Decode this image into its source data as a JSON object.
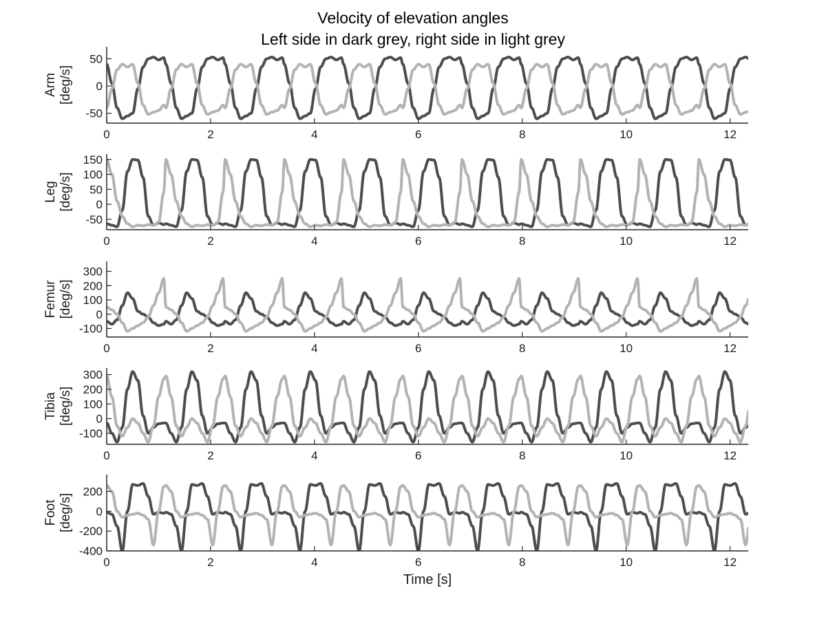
{
  "figure": {
    "title": "Velocity of elevation angles",
    "subtitle": "Left side in dark grey, right side in light grey"
  },
  "colors": {
    "left_series": "#4d4d4d",
    "right_series": "#b3b3b3",
    "axis": "#262626",
    "background": "#ffffff"
  },
  "chart_data": [
    {
      "type": "line",
      "panel": "Arm",
      "ylabel": [
        "Arm",
        "[deg/s]"
      ],
      "xlim": [
        0,
        12.35
      ],
      "ylim": [
        -68,
        72
      ],
      "yticks": [
        -50,
        0,
        50
      ],
      "xticks": [
        0,
        2,
        4,
        6,
        8,
        10,
        12
      ],
      "xlabel": "",
      "grid": false,
      "cycle_period_s": 1.14,
      "series": [
        {
          "side": "left",
          "color": "#4d4d4d",
          "x": [
            0,
            0.1,
            0.2,
            0.3,
            0.4,
            0.5,
            0.6,
            0.7,
            0.8,
            0.9,
            1.0,
            1.1,
            1.14
          ],
          "values": [
            40,
            5,
            -40,
            -60,
            -55,
            -50,
            -5,
            35,
            50,
            53,
            48,
            52,
            40
          ]
        },
        {
          "side": "right",
          "color": "#b3b3b3",
          "x": [
            0,
            0.1,
            0.2,
            0.3,
            0.4,
            0.5,
            0.6,
            0.7,
            0.8,
            0.9,
            1.0,
            1.1,
            1.14
          ],
          "values": [
            -40,
            -5,
            30,
            40,
            35,
            40,
            5,
            -35,
            -52,
            -48,
            -45,
            -35,
            -40
          ]
        }
      ]
    },
    {
      "type": "line",
      "panel": "Leg",
      "ylabel": [
        "Leg",
        "[deg/s]"
      ],
      "xlim": [
        0,
        12.35
      ],
      "ylim": [
        -85,
        168
      ],
      "yticks": [
        -50,
        0,
        50,
        100,
        150
      ],
      "xticks": [
        0,
        2,
        4,
        6,
        8,
        10,
        12
      ],
      "xlabel": "",
      "grid": false,
      "cycle_period_s": 1.14,
      "series": [
        {
          "side": "left",
          "color": "#4d4d4d",
          "x": [
            0,
            0.1,
            0.2,
            0.3,
            0.4,
            0.5,
            0.6,
            0.7,
            0.8,
            0.9,
            1.0,
            1.1,
            1.14
          ],
          "values": [
            -65,
            -70,
            -75,
            -20,
            110,
            150,
            148,
            90,
            -40,
            -70,
            -62,
            -68,
            -65
          ]
        },
        {
          "side": "right",
          "color": "#b3b3b3",
          "x": [
            0,
            0.1,
            0.2,
            0.3,
            0.4,
            0.5,
            0.6,
            0.7,
            0.8,
            0.9,
            1.0,
            1.1,
            1.14
          ],
          "values": [
            150,
            100,
            10,
            -40,
            -65,
            -75,
            -70,
            -72,
            -68,
            -70,
            -60,
            40,
            150
          ]
        }
      ]
    },
    {
      "type": "line",
      "panel": "Femur",
      "ylabel": [
        "Femur",
        "[deg/s]"
      ],
      "xlim": [
        0,
        12.35
      ],
      "ylim": [
        -160,
        370
      ],
      "yticks": [
        -100,
        0,
        100,
        200,
        300
      ],
      "xticks": [
        0,
        2,
        4,
        6,
        8,
        10,
        12
      ],
      "xlabel": "",
      "grid": false,
      "cycle_period_s": 1.14,
      "series": [
        {
          "side": "left",
          "color": "#4d4d4d",
          "x": [
            0,
            0.1,
            0.2,
            0.3,
            0.4,
            0.5,
            0.6,
            0.7,
            0.8,
            0.9,
            1.0,
            1.1,
            1.14
          ],
          "values": [
            -50,
            -70,
            -40,
            60,
            150,
            110,
            20,
            0,
            -20,
            -60,
            -80,
            -70,
            -50
          ]
        },
        {
          "side": "right",
          "color": "#b3b3b3",
          "x": [
            0,
            0.1,
            0.2,
            0.3,
            0.4,
            0.5,
            0.6,
            0.7,
            0.8,
            0.9,
            1.0,
            1.1,
            1.14
          ],
          "values": [
            50,
            30,
            0,
            -60,
            -120,
            -100,
            -80,
            -60,
            -20,
            60,
            150,
            250,
            50
          ]
        }
      ]
    },
    {
      "type": "line",
      "panel": "Tibia",
      "ylabel": [
        "Tibia",
        "[deg/s]"
      ],
      "xlim": [
        0,
        12.35
      ],
      "ylim": [
        -175,
        345
      ],
      "yticks": [
        -100,
        0,
        100,
        200,
        300
      ],
      "xticks": [
        0,
        2,
        4,
        6,
        8,
        10,
        12
      ],
      "xlabel": "",
      "grid": false,
      "cycle_period_s": 1.14,
      "series": [
        {
          "side": "left",
          "color": "#4d4d4d",
          "x": [
            0,
            0.1,
            0.2,
            0.3,
            0.4,
            0.5,
            0.6,
            0.7,
            0.8,
            0.9,
            1.0,
            1.1,
            1.14
          ],
          "values": [
            -30,
            -100,
            -160,
            -60,
            200,
            320,
            260,
            20,
            -100,
            -60,
            -35,
            -30,
            -30
          ]
        },
        {
          "side": "right",
          "color": "#b3b3b3",
          "x": [
            0,
            0.1,
            0.2,
            0.3,
            0.4,
            0.5,
            0.6,
            0.7,
            0.8,
            0.9,
            1.0,
            1.1,
            1.14
          ],
          "values": [
            290,
            150,
            -50,
            -120,
            -60,
            0,
            -30,
            -100,
            -160,
            -50,
            150,
            270,
            290
          ]
        }
      ]
    },
    {
      "type": "line",
      "panel": "Foot",
      "ylabel": [
        "Foot",
        "[deg/s]"
      ],
      "xlim": [
        0,
        12.35
      ],
      "ylim": [
        -400,
        370
      ],
      "yticks": [
        -400,
        -200,
        0,
        200
      ],
      "xticks": [
        0,
        2,
        4,
        6,
        8,
        10,
        12
      ],
      "xlabel": "Time [s]",
      "grid": false,
      "cycle_period_s": 1.14,
      "series": [
        {
          "side": "left",
          "color": "#4d4d4d",
          "x": [
            0,
            0.1,
            0.2,
            0.3,
            0.4,
            0.5,
            0.6,
            0.7,
            0.8,
            0.9,
            1.0,
            1.1,
            1.14
          ],
          "values": [
            -10,
            -30,
            -150,
            -400,
            0,
            270,
            260,
            280,
            150,
            -30,
            -10,
            -20,
            -10
          ]
        },
        {
          "side": "right",
          "color": "#b3b3b3",
          "x": [
            0,
            0.1,
            0.2,
            0.3,
            0.4,
            0.5,
            0.6,
            0.7,
            0.8,
            0.9,
            1.0,
            1.1,
            1.14
          ],
          "values": [
            260,
            200,
            0,
            -60,
            -40,
            -30,
            -20,
            -40,
            -80,
            -340,
            0,
            250,
            260
          ]
        }
      ]
    }
  ]
}
